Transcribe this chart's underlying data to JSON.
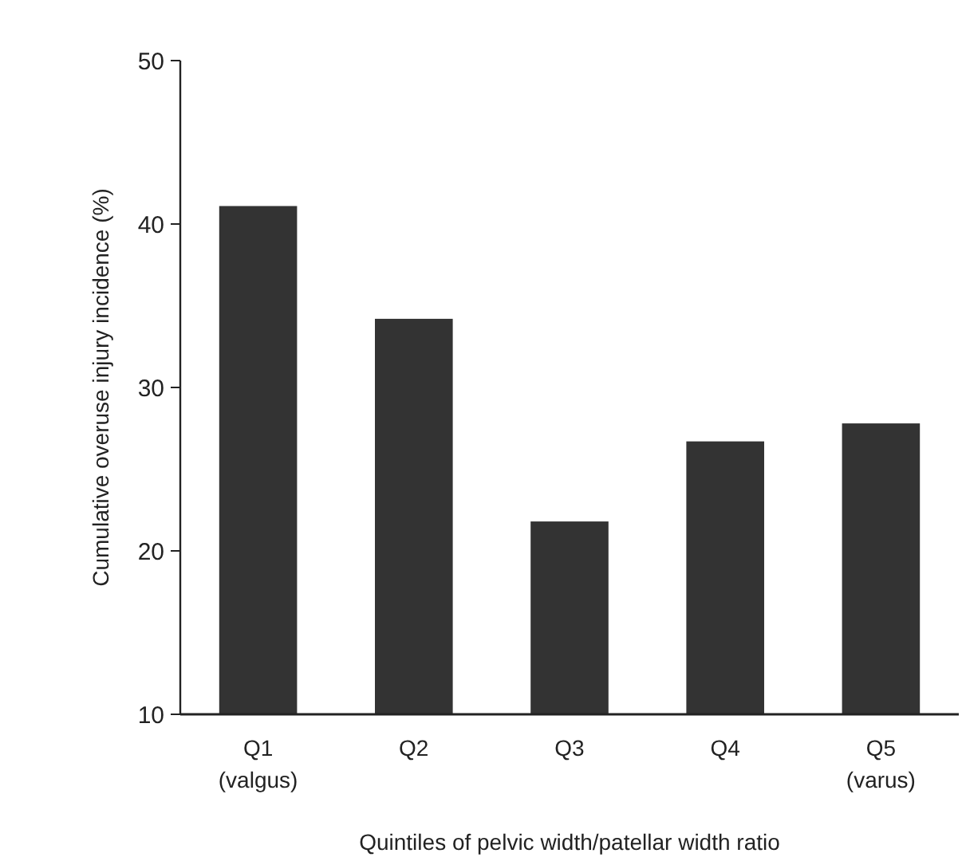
{
  "chart_data": {
    "type": "bar",
    "xlabel": "Quintiles of pelvic width/patellar width ratio",
    "ylabel": "Cumulative overuse injury incidence (%)",
    "categories": [
      "Q1\n(valgus)",
      "Q2",
      "Q3",
      "Q4",
      "Q5\n(varus)"
    ],
    "values": [
      41.1,
      34.2,
      21.8,
      26.7,
      27.8
    ],
    "color": "#333333",
    "ylim": [
      10,
      50
    ],
    "yticks": [
      10,
      20,
      30,
      40,
      50
    ],
    "grid": false
  }
}
